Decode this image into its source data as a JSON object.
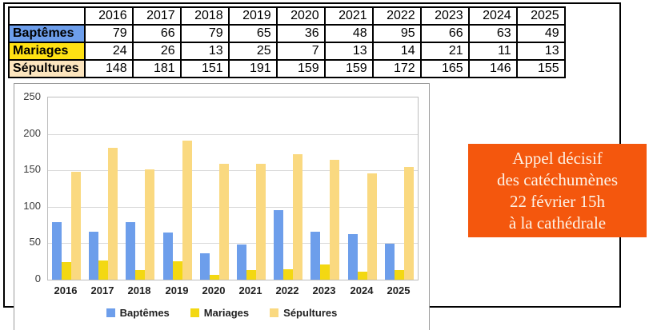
{
  "table": {
    "years": [
      "2016",
      "2017",
      "2018",
      "2019",
      "2020",
      "2021",
      "2022",
      "2023",
      "2024",
      "2025"
    ],
    "rows": [
      {
        "label": "Baptêmes",
        "color": "#6D9EEB",
        "values": [
          79,
          66,
          79,
          65,
          36,
          48,
          95,
          66,
          63,
          49
        ]
      },
      {
        "label": "Mariages",
        "color": "#FFE113",
        "values": [
          24,
          26,
          13,
          25,
          7,
          13,
          14,
          21,
          11,
          13
        ]
      },
      {
        "label": "Sépultures",
        "color": "#FCE5BE",
        "values": [
          148,
          181,
          151,
          191,
          159,
          159,
          172,
          165,
          146,
          155
        ]
      }
    ]
  },
  "chart_data": {
    "type": "bar",
    "title": "",
    "xlabel": "",
    "ylabel": "",
    "categories": [
      "2016",
      "2017",
      "2018",
      "2019",
      "2020",
      "2021",
      "2022",
      "2023",
      "2024",
      "2025"
    ],
    "series": [
      {
        "name": "Baptêmes",
        "color": "#6D9EEB",
        "values": [
          79,
          66,
          79,
          65,
          36,
          48,
          95,
          66,
          63,
          49
        ]
      },
      {
        "name": "Mariages",
        "color": "#F3D812",
        "values": [
          24,
          26,
          13,
          25,
          7,
          13,
          14,
          21,
          11,
          13
        ]
      },
      {
        "name": "Sépultures",
        "color": "#FAD980",
        "values": [
          148,
          181,
          151,
          191,
          159,
          159,
          172,
          165,
          146,
          155
        ]
      }
    ],
    "ylim": [
      0,
      250
    ],
    "yticks": [
      0,
      50,
      100,
      150,
      200,
      250
    ],
    "grid": true,
    "legend_position": "bottom"
  },
  "announcement": {
    "lines": [
      "Appel décisif",
      "des catéchumènes",
      "22 février 15h",
      "à la cathédrale"
    ],
    "bg_color": "#F4570D",
    "text_color": "#FDF3E7"
  }
}
